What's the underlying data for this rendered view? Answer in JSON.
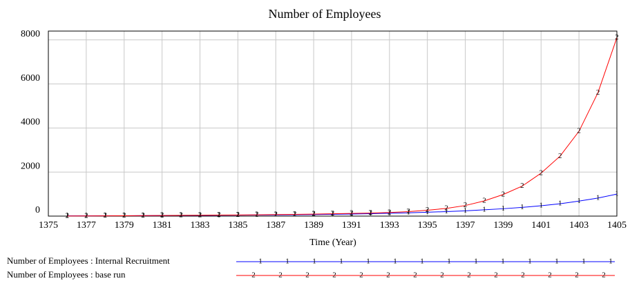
{
  "chart_data": {
    "type": "line",
    "title": "Number of Employees",
    "x_label": "Time (Year)",
    "x": [
      1376,
      1377,
      1378,
      1379,
      1380,
      1381,
      1382,
      1383,
      1384,
      1385,
      1386,
      1387,
      1388,
      1389,
      1390,
      1391,
      1392,
      1393,
      1394,
      1395,
      1396,
      1397,
      1398,
      1399,
      1400,
      1401,
      1402,
      1403,
      1404,
      1405
    ],
    "series": [
      {
        "name": "Number of Employees : Internal Recruitment",
        "color": "#0000ff",
        "marker": "1",
        "values": [
          10,
          12,
          14,
          16,
          20,
          24,
          28,
          32,
          38,
          44,
          50,
          56,
          64,
          72,
          82,
          95,
          110,
          128,
          150,
          175,
          205,
          240,
          285,
          335,
          395,
          470,
          560,
          680,
          820,
          1000
        ]
      },
      {
        "name": "Number of Employees : base run",
        "color": "#ff0000",
        "marker": "2",
        "values": [
          5,
          8,
          12,
          16,
          22,
          28,
          34,
          40,
          46,
          52,
          60,
          70,
          80,
          92,
          105,
          120,
          138,
          165,
          205,
          265,
          350,
          480,
          690,
          980,
          1360,
          1950,
          2720,
          3850,
          5600,
          8100
        ]
      }
    ],
    "xlim": [
      1375,
      1405
    ],
    "xticks": [
      1375,
      1377,
      1379,
      1381,
      1383,
      1385,
      1387,
      1389,
      1391,
      1393,
      1395,
      1397,
      1399,
      1401,
      1403,
      1405
    ],
    "ylim": [
      0,
      8400
    ],
    "yticks": [
      0,
      2000,
      4000,
      6000,
      8000
    ],
    "grid": true
  }
}
